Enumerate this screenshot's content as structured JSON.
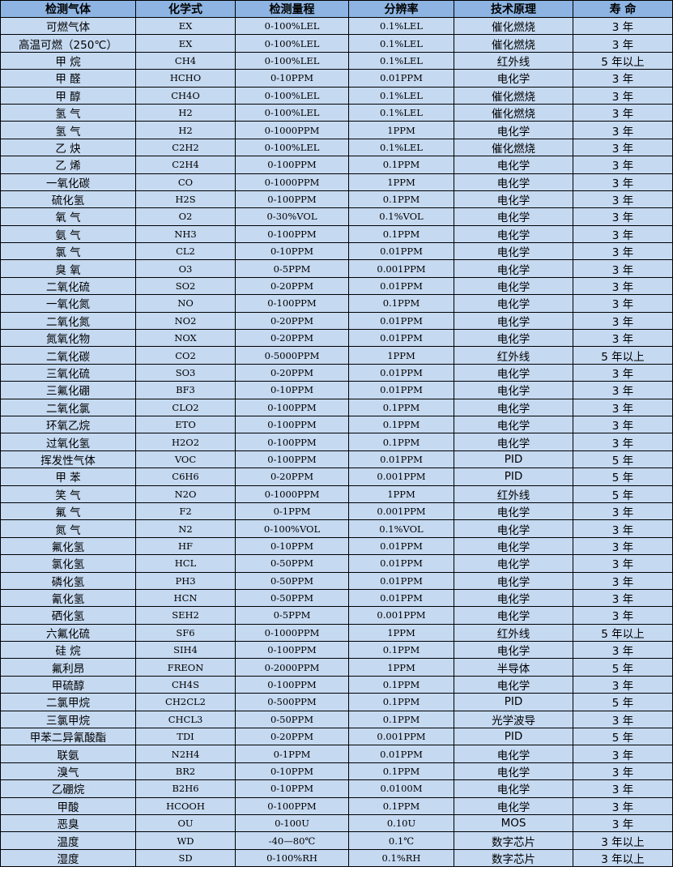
{
  "headers": [
    "检测气体",
    "化学式",
    "检测量程",
    "分辨率",
    "技术原理",
    "寿 命"
  ],
  "rows": [
    [
      "可燃气体",
      "EX",
      "0-100%LEL",
      "0.1%LEL",
      "催化燃烧",
      "3 年"
    ],
    [
      "高温可燃（250℃）",
      "EX",
      "0-100%LEL",
      "0.1%LEL",
      "催化燃烧",
      "3 年"
    ],
    [
      "甲 烷",
      "CH4",
      "0-100%LEL",
      "0.1%LEL",
      "红外线",
      "5 年以上"
    ],
    [
      "甲 醛",
      "HCHO",
      "0-10PPM",
      "0.01PPM",
      "电化学",
      "3 年"
    ],
    [
      "甲 醇",
      "CH4O",
      "0-100%LEL",
      "0.1%LEL",
      "催化燃烧",
      "3 年"
    ],
    [
      "氢 气",
      "H2",
      "0-100%LEL",
      "0.1%LEL",
      "催化燃烧",
      "3 年"
    ],
    [
      "氢 气",
      "H2",
      "0-1000PPM",
      "1PPM",
      "电化学",
      "3 年"
    ],
    [
      "乙 炔",
      "C2H2",
      "0-100%LEL",
      "0.1%LEL",
      "催化燃烧",
      "3 年"
    ],
    [
      "乙 烯",
      "C2H4",
      "0-100PPM",
      "0.1PPM",
      "电化学",
      "3 年"
    ],
    [
      "一氧化碳",
      "CO",
      "0-1000PPM",
      "1PPM",
      "电化学",
      "3 年"
    ],
    [
      "硫化氢",
      "H2S",
      "0-100PPM",
      "0.1PPM",
      "电化学",
      "3 年"
    ],
    [
      "氧 气",
      "O2",
      "0-30%VOL",
      "0.1%VOL",
      "电化学",
      "3 年"
    ],
    [
      "氨 气",
      "NH3",
      "0-100PPM",
      "0.1PPM",
      "电化学",
      "3 年"
    ],
    [
      "氯 气",
      "CL2",
      "0-10PPM",
      "0.01PPM",
      "电化学",
      "3 年"
    ],
    [
      "臭 氧",
      "O3",
      "0-5PPM",
      "0.001PPM",
      "电化学",
      "3 年"
    ],
    [
      "二氧化硫",
      "SO2",
      "0-20PPM",
      "0.01PPM",
      "电化学",
      "3 年"
    ],
    [
      "一氧化氮",
      "NO",
      "0-100PPM",
      "0.1PPM",
      "电化学",
      "3 年"
    ],
    [
      "二氧化氮",
      "NO2",
      "0-20PPM",
      "0.01PPM",
      "电化学",
      "3 年"
    ],
    [
      "氮氧化物",
      "NOX",
      "0-20PPM",
      "0.01PPM",
      "电化学",
      "3 年"
    ],
    [
      "二氧化碳",
      "CO2",
      "0-5000PPM",
      "1PPM",
      "红外线",
      "5 年以上"
    ],
    [
      "三氧化硫",
      "SO3",
      "0-20PPM",
      "0.01PPM",
      "电化学",
      "3 年"
    ],
    [
      "三氟化硼",
      "BF3",
      "0-10PPM",
      "0.01PPM",
      "电化学",
      "3 年"
    ],
    [
      "二氧化氯",
      "CLO2",
      "0-100PPM",
      "0.1PPM",
      "电化学",
      "3 年"
    ],
    [
      "环氧乙烷",
      "ETO",
      "0-100PPM",
      "0.1PPM",
      "电化学",
      "3 年"
    ],
    [
      "过氧化氢",
      "H2O2",
      "0-100PPM",
      "0.1PPM",
      "电化学",
      "3 年"
    ],
    [
      "挥发性气体",
      "VOC",
      "0-100PPM",
      "0.01PPM",
      "PID",
      "5 年"
    ],
    [
      "甲 苯",
      "C6H6",
      "0-20PPM",
      "0.001PPM",
      "PID",
      "5 年"
    ],
    [
      "笑 气",
      "N2O",
      "0-1000PPM",
      "1PPM",
      "红外线",
      "5 年"
    ],
    [
      "氟 气",
      "F2",
      "0-1PPM",
      "0.001PPM",
      "电化学",
      "3 年"
    ],
    [
      "氮 气",
      "N2",
      "0-100%VOL",
      "0.1%VOL",
      "电化学",
      "3 年"
    ],
    [
      "氟化氢",
      "HF",
      "0-10PPM",
      "0.01PPM",
      "电化学",
      "3 年"
    ],
    [
      "氯化氢",
      "HCL",
      "0-50PPM",
      "0.01PPM",
      "电化学",
      "3 年"
    ],
    [
      "磷化氢",
      "PH3",
      "0-50PPM",
      "0.01PPM",
      "电化学",
      "3 年"
    ],
    [
      "氰化氢",
      "HCN",
      "0-50PPM",
      "0.01PPM",
      "电化学",
      "3 年"
    ],
    [
      "硒化氢",
      "SEH2",
      "0-5PPM",
      "0.001PPM",
      "电化学",
      "3 年"
    ],
    [
      "六氟化硫",
      "SF6",
      "0-1000PPM",
      "1PPM",
      "红外线",
      "5 年以上"
    ],
    [
      "硅 烷",
      "SIH4",
      "0-100PPM",
      "0.1PPM",
      "电化学",
      "3 年"
    ],
    [
      "氟利昂",
      "FREON",
      "0-2000PPM",
      "1PPM",
      "半导体",
      "5 年"
    ],
    [
      "甲硫醇",
      "CH4S",
      "0-100PPM",
      "0.1PPM",
      "电化学",
      "3 年"
    ],
    [
      "二氯甲烷",
      "CH2CL2",
      "0-500PPM",
      "0.1PPM",
      "PID",
      "5 年"
    ],
    [
      "三氯甲烷",
      "CHCL3",
      "0-50PPM",
      "0.1PPM",
      "光学波导",
      "3 年"
    ],
    [
      "甲苯二异氰酸酯",
      "TDI",
      "0-20PPM",
      "0.001PPM",
      "PID",
      "5 年"
    ],
    [
      "联氨",
      "N2H4",
      "0-1PPM",
      "0.01PPM",
      "电化学",
      "3 年"
    ],
    [
      "溴气",
      "BR2",
      "0-10PPM",
      "0.1PPM",
      "电化学",
      "3 年"
    ],
    [
      "乙硼烷",
      "B2H6",
      "0-10PPM",
      "0.0100M",
      "电化学",
      "3 年"
    ],
    [
      "甲酸",
      "HCOOH",
      "0-100PPM",
      "0.1PPM",
      "电化学",
      "3 年"
    ],
    [
      "恶臭",
      "OU",
      "0-100U",
      "0.10U",
      "MOS",
      "3 年"
    ],
    [
      "温度",
      "WD",
      "-40—80℃",
      "0.1℃",
      "数字芯片",
      "3 年以上"
    ],
    [
      "湿度",
      "SD",
      "0-100%RH",
      "0.1%RH",
      "数字芯片",
      "3 年以上"
    ]
  ]
}
